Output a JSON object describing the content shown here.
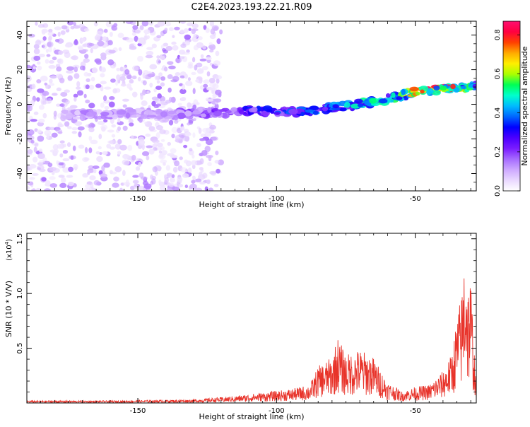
{
  "title": "C2E4.2023.193.22.21.R09",
  "chart_data": [
    {
      "type": "heatmap",
      "title": "C2E4.2023.193.22.21.R09",
      "xlabel": "Height of straight line (km)",
      "ylabel": "Frequency (Hz)",
      "xlim": [
        -190,
        -28
      ],
      "ylim": [
        -50,
        48
      ],
      "x_ticks": [
        -150,
        -100,
        -50
      ],
      "y_ticks": [
        -40,
        -20,
        0,
        20,
        40
      ],
      "colorbar": {
        "label": "Normalized spectral amplitude",
        "range": [
          0.0,
          0.87
        ],
        "ticks": [
          "0.0",
          "0.2",
          "0.4",
          "0.6",
          "0.8"
        ],
        "tick_values": [
          0.0,
          0.2,
          0.4,
          0.6,
          0.8
        ],
        "colormap": [
          "#ffffff",
          "#e9d8ff",
          "#cda8ff",
          "#a66bff",
          "#7a1cff",
          "#4b00ff",
          "#0000ff",
          "#0066ff",
          "#00bbff",
          "#00ffcc",
          "#00ff55",
          "#aaff00",
          "#ffee00",
          "#ffaa00",
          "#ff4000",
          "#ff0040",
          "#ff1070"
        ]
      },
      "ridge": {
        "description_points_x": [
          -178,
          -165,
          -150,
          -140,
          -130,
          -120,
          -110,
          -100,
          -90,
          -80,
          -70,
          -60,
          -50,
          -40,
          -30
        ],
        "frequency_hz": [
          -6,
          -6,
          -5,
          -6,
          -5,
          -5,
          -4,
          -4,
          -4,
          -2,
          0,
          3,
          7,
          9,
          10
        ],
        "amplitude": [
          0.1,
          0.18,
          0.12,
          0.14,
          0.2,
          0.22,
          0.32,
          0.34,
          0.4,
          0.42,
          0.48,
          0.52,
          0.7,
          0.85,
          0.5
        ]
      },
      "noise_region_x": [
        -190,
        -120
      ]
    },
    {
      "type": "line",
      "xlabel": "Height of straight line (km)",
      "ylabel": "SNR (10 * V/V)",
      "scale_note": "(x10",
      "scale_exp": "4",
      "scale_close": ")",
      "xlim": [
        -190,
        -28
      ],
      "ylim": [
        0,
        1.55
      ],
      "x_ticks": [
        -150,
        -100,
        -50
      ],
      "y_ticks": [
        0.5,
        1.0,
        1.5
      ],
      "y_tick_labels": [
        "0.5",
        "1.0",
        "1.5"
      ],
      "line_color": "#e8332a",
      "envelope": {
        "x": [
          -190,
          -160,
          -130,
          -115,
          -105,
          -95,
          -88,
          -85,
          -80,
          -78,
          -75,
          -70,
          -65,
          -60,
          -57,
          -55,
          -50,
          -45,
          -40,
          -37,
          -35,
          -33,
          -32,
          -31,
          -30,
          -28
        ],
        "snr_x1e4": [
          0.02,
          0.02,
          0.03,
          0.06,
          0.09,
          0.12,
          0.16,
          0.32,
          0.4,
          0.58,
          0.42,
          0.47,
          0.4,
          0.18,
          0.14,
          0.1,
          0.14,
          0.16,
          0.28,
          0.42,
          0.75,
          1.0,
          1.55,
          1.05,
          1.12,
          0.12
        ]
      }
    }
  ]
}
